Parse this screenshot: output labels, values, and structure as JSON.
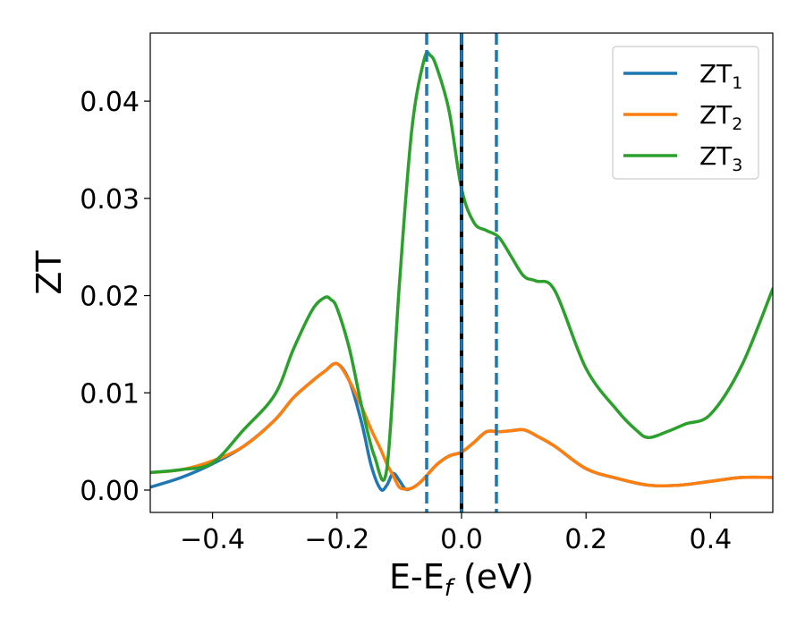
{
  "chart_data": {
    "type": "line",
    "xlabel": "E-E",
    "xlabel_subscript": "f",
    "xlabel_suffix": " (eV)",
    "ylabel": "ZT",
    "xlim": [
      -0.5,
      0.5
    ],
    "ylim": [
      -0.0023,
      0.047
    ],
    "xticks": [
      -0.4,
      -0.2,
      0.0,
      0.2,
      0.4
    ],
    "xtick_labels": [
      "−0.4",
      "−0.2",
      "0.0",
      "0.2",
      "0.4"
    ],
    "yticks": [
      0.0,
      0.01,
      0.02,
      0.03,
      0.04
    ],
    "ytick_labels": [
      "0.00",
      "0.01",
      "0.02",
      "0.03",
      "0.04"
    ],
    "grid": false,
    "legend_position": "top-right",
    "vlines": [
      {
        "x": -0.056,
        "style": "dashed",
        "color": "#1f77b4"
      },
      {
        "x": 0.056,
        "style": "dashed",
        "color": "#1f77b4"
      },
      {
        "x": 0.0,
        "style": "solid",
        "color": "#000000"
      },
      {
        "x": 0.0,
        "style": "dashed",
        "color": "#1f77b4"
      }
    ],
    "series": [
      {
        "name": "ZT",
        "subscript": "1",
        "color": "#1f77b4",
        "x": [
          -0.5,
          -0.45,
          -0.4,
          -0.35,
          -0.3,
          -0.27,
          -0.24,
          -0.22,
          -0.2,
          -0.18,
          -0.16,
          -0.145,
          -0.13,
          -0.12,
          -0.11,
          -0.1,
          -0.09,
          -0.08,
          -0.07,
          -0.06,
          -0.04,
          -0.02,
          0.0,
          0.02,
          0.04,
          0.06,
          0.08,
          0.1,
          0.12,
          0.15,
          0.2,
          0.25,
          0.3,
          0.35,
          0.4,
          0.45,
          0.5
        ],
        "y": [
          0.0003,
          0.0013,
          0.0027,
          0.0045,
          0.0072,
          0.0095,
          0.0112,
          0.0122,
          0.013,
          0.0112,
          0.0068,
          0.0025,
          0.0001,
          0.0005,
          0.0017,
          0.001,
          0.0001,
          0.0002,
          0.0006,
          0.0012,
          0.0026,
          0.0035,
          0.0039,
          0.0049,
          0.006,
          0.006,
          0.0061,
          0.0062,
          0.0056,
          0.0045,
          0.0022,
          0.0012,
          0.0005,
          0.0005,
          0.0009,
          0.0013,
          0.0013
        ]
      },
      {
        "name": "ZT",
        "subscript": "2",
        "color": "#ff7f0e",
        "x": [
          -0.5,
          -0.45,
          -0.4,
          -0.35,
          -0.3,
          -0.27,
          -0.24,
          -0.22,
          -0.2,
          -0.18,
          -0.16,
          -0.145,
          -0.13,
          -0.12,
          -0.11,
          -0.1,
          -0.09,
          -0.08,
          -0.07,
          -0.06,
          -0.04,
          -0.02,
          0.0,
          0.02,
          0.04,
          0.06,
          0.08,
          0.1,
          0.12,
          0.15,
          0.2,
          0.25,
          0.3,
          0.35,
          0.4,
          0.45,
          0.5
        ],
        "y": [
          0.0018,
          0.0021,
          0.003,
          0.0045,
          0.0072,
          0.0095,
          0.0112,
          0.0122,
          0.013,
          0.0112,
          0.0085,
          0.0062,
          0.0042,
          0.0027,
          0.0015,
          0.0003,
          0.0001,
          0.0002,
          0.0006,
          0.0012,
          0.0026,
          0.0035,
          0.0039,
          0.0049,
          0.006,
          0.006,
          0.0061,
          0.0062,
          0.0056,
          0.0045,
          0.0022,
          0.0012,
          0.0005,
          0.0005,
          0.0009,
          0.0013,
          0.0013
        ]
      },
      {
        "name": "ZT",
        "subscript": "3",
        "color": "#2ca02c",
        "x": [
          -0.5,
          -0.45,
          -0.4,
          -0.35,
          -0.3,
          -0.27,
          -0.24,
          -0.22,
          -0.21,
          -0.2,
          -0.18,
          -0.16,
          -0.14,
          -0.12,
          -0.1,
          -0.08,
          -0.06,
          -0.05,
          -0.04,
          -0.02,
          0.0,
          0.02,
          0.04,
          0.06,
          0.08,
          0.1,
          0.12,
          0.15,
          0.2,
          0.25,
          0.28,
          0.3,
          0.33,
          0.36,
          0.4,
          0.45,
          0.5
        ],
        "y": [
          0.0018,
          0.0021,
          0.0028,
          0.0062,
          0.0098,
          0.0145,
          0.0185,
          0.0198,
          0.0196,
          0.0187,
          0.0145,
          0.0085,
          0.0035,
          0.0022,
          0.021,
          0.037,
          0.0443,
          0.0447,
          0.0435,
          0.039,
          0.031,
          0.0275,
          0.0267,
          0.026,
          0.024,
          0.022,
          0.0215,
          0.0205,
          0.0125,
          0.0082,
          0.0062,
          0.0054,
          0.006,
          0.0068,
          0.0078,
          0.0128,
          0.0207
        ]
      }
    ]
  }
}
